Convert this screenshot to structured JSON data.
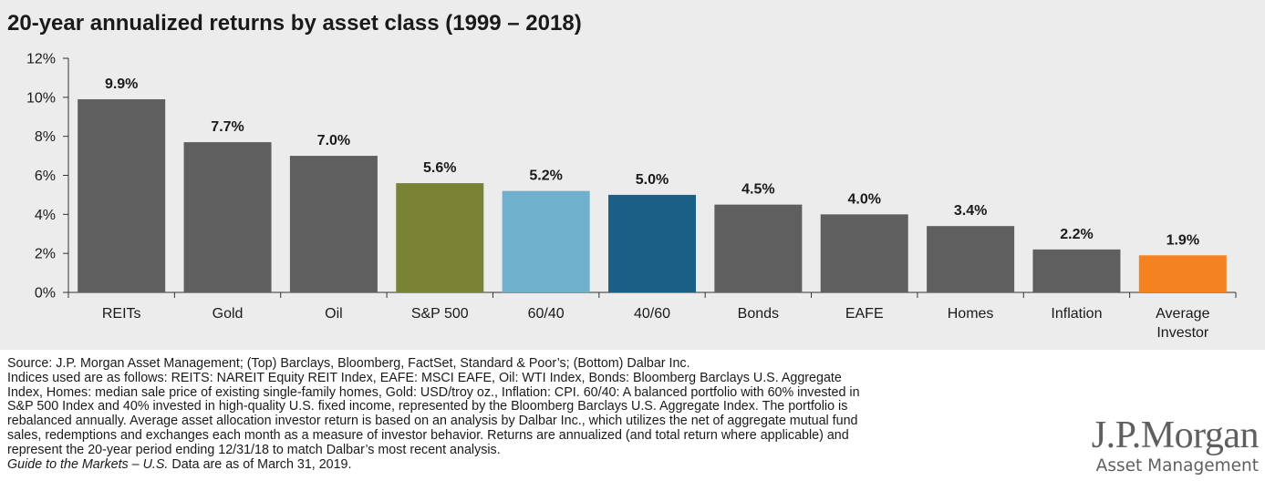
{
  "chart": {
    "title": "20-year annualized returns by asset class (1999 – 2018)"
  },
  "chart_data": {
    "type": "bar",
    "title": "20-year annualized returns by asset class (1999 – 2018)",
    "xlabel": "",
    "ylabel": "",
    "ylim": [
      0,
      12
    ],
    "yticks": [
      "0%",
      "2%",
      "4%",
      "6%",
      "8%",
      "10%",
      "12%"
    ],
    "grid": false,
    "legend": "none",
    "categories": [
      "REITs",
      "Gold",
      "Oil",
      "S&P 500",
      "60/40",
      "40/60",
      "Bonds",
      "EAFE",
      "Homes",
      "Inflation",
      "Average Investor"
    ],
    "values": [
      9.9,
      7.7,
      7.0,
      5.6,
      5.2,
      5.0,
      4.5,
      4.0,
      3.4,
      2.2,
      1.9
    ],
    "data_labels": [
      "9.9%",
      "7.7%",
      "7.0%",
      "5.6%",
      "5.2%",
      "5.0%",
      "4.5%",
      "4.0%",
      "3.4%",
      "2.2%",
      "1.9%"
    ],
    "colors": [
      "#5f5f5f",
      "#5f5f5f",
      "#5f5f5f",
      "#7a8236",
      "#6fb0cd",
      "#1a5f86",
      "#5f5f5f",
      "#5f5f5f",
      "#5f5f5f",
      "#5f5f5f",
      "#f58220"
    ]
  },
  "notes": {
    "lines": [
      "Source: J.P. Morgan Asset Management; (Top) Barclays, Bloomberg, FactSet, Standard & Poor’s; (Bottom) Dalbar Inc.",
      "Indices used are as follows: REITS: NAREIT Equity REIT Index, EAFE: MSCI EAFE, Oil: WTI Index, Bonds: Bloomberg Barclays U.S. Aggregate",
      "Index, Homes: median sale price of existing single-family homes, Gold: USD/troy oz., Inflation: CPI. 60/40: A balanced portfolio with 60% invested in",
      "S&P 500 Index and 40% invested in high-quality U.S. fixed income, represented by the Bloomberg Barclays U.S. Aggregate Index. The portfolio is",
      "rebalanced annually. Average asset allocation investor return is based on an analysis by Dalbar Inc., which utilizes the net of aggregate mutual fund",
      "sales, redemptions and exchanges each month as a measure of investor behavior. Returns are annualized (and total return where applicable) and",
      "represent the 20-year period ending 12/31/18 to match Dalbar’s most recent analysis."
    ],
    "guide_italic": "Guide to the Markets – U.S.",
    "guide_rest": " Data are as of March 31, 2019."
  },
  "logo": {
    "main": "J.P.Morgan",
    "sub": "Asset Management"
  }
}
